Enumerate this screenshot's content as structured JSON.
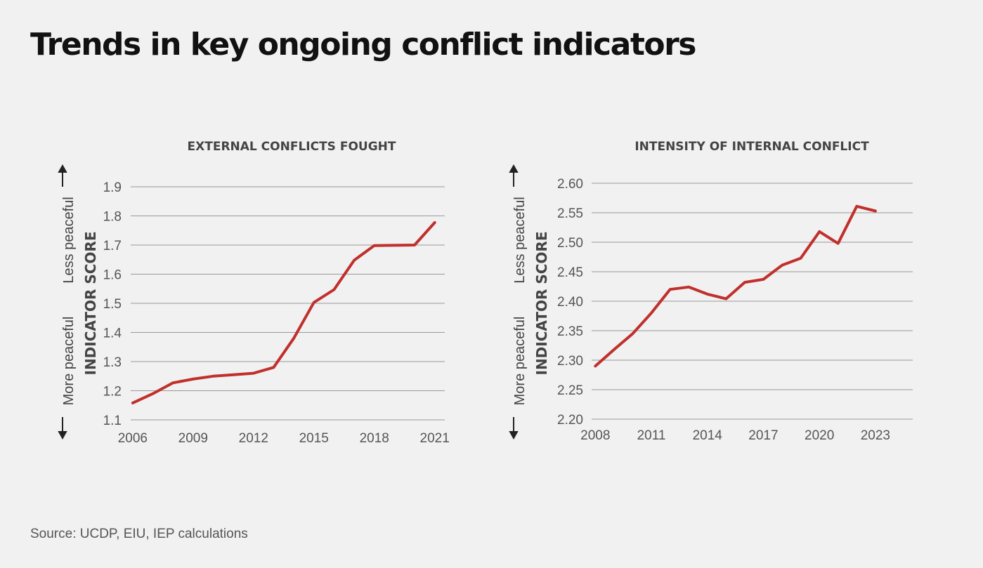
{
  "title": "Trends in key ongoing conflict indicators",
  "source": "Source: UCDP, EIU, IEP calculations",
  "chart_data": [
    {
      "type": "line",
      "title": "EXTERNAL CONFLICTS FOUGHT",
      "ylabel": "INDICATOR SCORE",
      "direction_up": "Less peaceful",
      "direction_down": "More peaceful",
      "ylim": [
        1.1,
        1.9
      ],
      "yticks": [
        "1.1",
        "1.2",
        "1.3",
        "1.4",
        "1.5",
        "1.6",
        "1.7",
        "1.8",
        "1.9"
      ],
      "xlim": [
        2005.9,
        2021.5
      ],
      "xticks": [
        "2006",
        "2009",
        "2012",
        "2015",
        "2018",
        "2021"
      ],
      "grid": true,
      "color": "#c0302c",
      "x": [
        2006,
        2007,
        2008,
        2009,
        2010,
        2011,
        2012,
        2013,
        2014,
        2015,
        2016,
        2017,
        2018,
        2019,
        2020,
        2021
      ],
      "values": [
        1.158,
        1.19,
        1.227,
        1.24,
        1.25,
        1.255,
        1.26,
        1.28,
        1.38,
        1.503,
        1.547,
        1.648,
        1.698,
        1.699,
        1.7,
        1.777
      ]
    },
    {
      "type": "line",
      "title": "INTENSITY OF INTERNAL CONFLICT",
      "ylabel": "INDICATOR SCORE",
      "direction_up": "Less peaceful",
      "direction_down": "More peaceful",
      "ylim": [
        2.2,
        2.6
      ],
      "yticks": [
        "2.20",
        "2.25",
        "2.30",
        "2.35",
        "2.40",
        "2.45",
        "2.50",
        "2.55",
        "2.60"
      ],
      "xlim": [
        2007.8,
        2025
      ],
      "xticks": [
        "2008",
        "2011",
        "2014",
        "2017",
        "2020",
        "2023"
      ],
      "grid": true,
      "color": "#c0302c",
      "x": [
        2008,
        2009,
        2010,
        2011,
        2012,
        2013,
        2014,
        2015,
        2016,
        2017,
        2018,
        2019,
        2020,
        2021,
        2022,
        2023
      ],
      "values": [
        2.29,
        2.318,
        2.345,
        2.38,
        2.42,
        2.424,
        2.412,
        2.404,
        2.432,
        2.437,
        2.461,
        2.473,
        2.518,
        2.498,
        2.561,
        2.553
      ]
    }
  ]
}
